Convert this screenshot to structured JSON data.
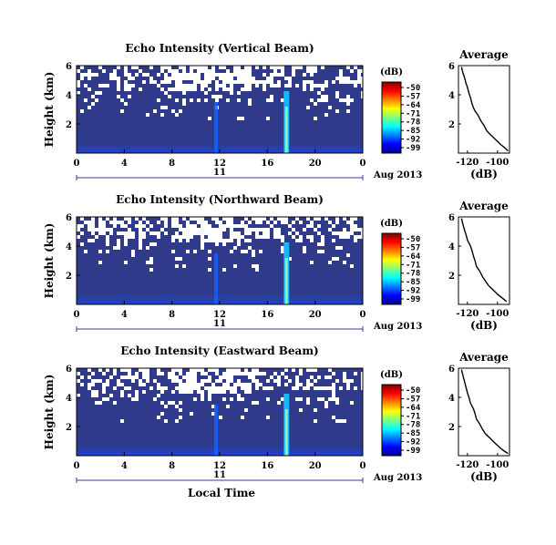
{
  "chart_data": [
    {
      "type": "heatmap",
      "title": "Echo Intensity (Vertical Beam)",
      "ylabel": "Height (km)",
      "x_ticks": [
        "0",
        "4",
        "8",
        "12",
        "16",
        "20",
        "0"
      ],
      "y_ticks": [
        "6",
        "4",
        "2"
      ],
      "date_row": {
        "day": "11",
        "month_year": "Aug 2013"
      },
      "colorbar": {
        "unit": "(dB)",
        "ticks": [
          "-50",
          "-57",
          "-64",
          "-71",
          "-78",
          "-85",
          "-92",
          "-99"
        ],
        "range": [
          -99,
          -50
        ]
      },
      "xlim": [
        0,
        24
      ],
      "ylim": [
        0,
        6
      ],
      "average": {
        "title": "Average",
        "xlabel": "(dB)",
        "x_ticks": [
          "-120",
          "-100"
        ],
        "y_ticks": [
          "6",
          "4",
          "2"
        ],
        "xlim": [
          -126,
          -92
        ],
        "ylim": [
          0,
          6
        ],
        "profile": [
          [
            -124,
            5.9
          ],
          [
            -123,
            5.5
          ],
          [
            -122,
            5.2
          ],
          [
            -121,
            4.8
          ],
          [
            -120,
            4.5
          ],
          [
            -119,
            4.1
          ],
          [
            -118,
            3.8
          ],
          [
            -117,
            3.4
          ],
          [
            -116,
            3.1
          ],
          [
            -115,
            2.9
          ],
          [
            -113,
            2.6
          ],
          [
            -111,
            2.2
          ],
          [
            -109,
            1.9
          ],
          [
            -107,
            1.5
          ],
          [
            -104,
            1.2
          ],
          [
            -101,
            0.9
          ],
          [
            -98,
            0.6
          ],
          [
            -95,
            0.35
          ],
          [
            -93,
            0.15
          ]
        ]
      }
    },
    {
      "type": "heatmap",
      "title": "Echo Intensity (Northward Beam)",
      "ylabel": "Height (km)",
      "x_ticks": [
        "0",
        "4",
        "8",
        "12",
        "16",
        "20",
        "0"
      ],
      "y_ticks": [
        "6",
        "4",
        "2"
      ],
      "date_row": {
        "day": "11",
        "month_year": "Aug 2013"
      },
      "colorbar": {
        "unit": "(dB)",
        "ticks": [
          "-50",
          "-57",
          "-64",
          "-71",
          "-78",
          "-85",
          "-92",
          "-99"
        ],
        "range": [
          -99,
          -50
        ]
      },
      "xlim": [
        0,
        24
      ],
      "ylim": [
        0,
        6
      ],
      "average": {
        "title": "Average",
        "xlabel": "(dB)",
        "x_ticks": [
          "-120",
          "-100"
        ],
        "y_ticks": [
          "6",
          "4",
          "2"
        ],
        "xlim": [
          -126,
          -92
        ],
        "ylim": [
          0,
          6
        ],
        "profile": [
          [
            -124,
            5.9
          ],
          [
            -123,
            5.5
          ],
          [
            -122,
            5.1
          ],
          [
            -121,
            4.8
          ],
          [
            -120,
            4.4
          ],
          [
            -118,
            4.0
          ],
          [
            -117,
            3.7
          ],
          [
            -116,
            3.3
          ],
          [
            -115,
            3.0
          ],
          [
            -114,
            2.6
          ],
          [
            -112,
            2.3
          ],
          [
            -110,
            1.9
          ],
          [
            -108,
            1.6
          ],
          [
            -106,
            1.3
          ],
          [
            -103,
            1.0
          ],
          [
            -100,
            0.7
          ],
          [
            -97,
            0.45
          ],
          [
            -94,
            0.2
          ]
        ]
      }
    },
    {
      "type": "heatmap",
      "title": "Echo Intensity (Eastward Beam)",
      "ylabel": "Height (km)",
      "xlabel": "Local Time",
      "x_ticks": [
        "0",
        "4",
        "8",
        "12",
        "16",
        "20",
        "0"
      ],
      "y_ticks": [
        "6",
        "4",
        "2"
      ],
      "date_row": {
        "day": "11",
        "month_year": "Aug 2013"
      },
      "colorbar": {
        "unit": "(dB)",
        "ticks": [
          "-50",
          "-57",
          "-64",
          "-71",
          "-78",
          "-85",
          "-92",
          "-99"
        ],
        "range": [
          -99,
          -50
        ]
      },
      "xlim": [
        0,
        24
      ],
      "ylim": [
        0,
        6
      ],
      "average": {
        "title": "Average",
        "xlabel": "(dB)",
        "x_ticks": [
          "-120",
          "-100"
        ],
        "y_ticks": [
          "6",
          "4",
          "2"
        ],
        "xlim": [
          -126,
          -92
        ],
        "ylim": [
          0,
          6
        ],
        "profile": [
          [
            -124,
            5.9
          ],
          [
            -123,
            5.5
          ],
          [
            -122,
            5.1
          ],
          [
            -121,
            4.7
          ],
          [
            -120,
            4.3
          ],
          [
            -119,
            4.0
          ],
          [
            -118,
            3.6
          ],
          [
            -116,
            3.2
          ],
          [
            -115,
            2.9
          ],
          [
            -114,
            2.5
          ],
          [
            -112,
            2.2
          ],
          [
            -110,
            1.8
          ],
          [
            -108,
            1.5
          ],
          [
            -105,
            1.2
          ],
          [
            -102,
            0.9
          ],
          [
            -99,
            0.6
          ],
          [
            -96,
            0.35
          ],
          [
            -93,
            0.15
          ]
        ]
      }
    }
  ]
}
